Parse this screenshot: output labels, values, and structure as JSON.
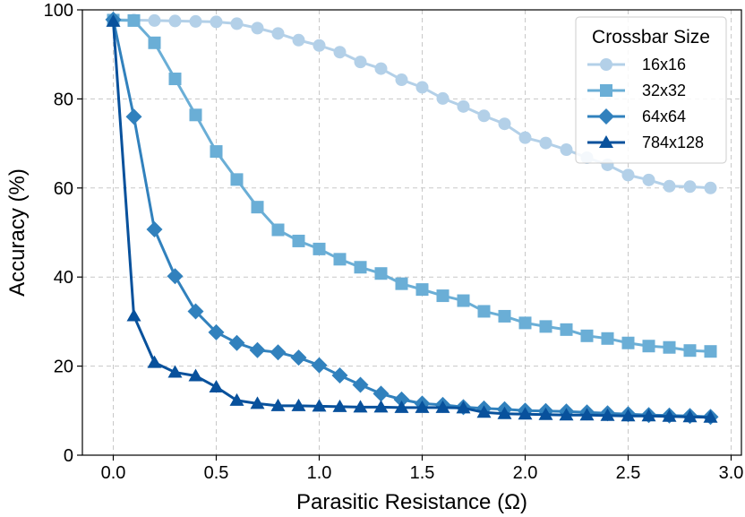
{
  "chart_data": {
    "type": "line",
    "title": "",
    "xlabel": "Parasitic Resistance (Ω)",
    "ylabel": "Accuracy (%)",
    "xlim": [
      -0.15,
      3.05
    ],
    "ylim": [
      0,
      100
    ],
    "xticks": [
      0.0,
      0.5,
      1.0,
      1.5,
      2.0,
      2.5,
      3.0
    ],
    "xtick_labels": [
      "0.0",
      "0.5",
      "1.0",
      "1.5",
      "2.0",
      "2.5",
      "3.0"
    ],
    "yticks": [
      0,
      20,
      40,
      60,
      80,
      100
    ],
    "ytick_labels": [
      "0",
      "20",
      "40",
      "60",
      "80",
      "100"
    ],
    "grid": true,
    "legend": {
      "title": "Crossbar Size",
      "placement": "top-right"
    },
    "x": [
      0.0,
      0.1,
      0.2,
      0.3,
      0.4,
      0.5,
      0.6,
      0.7,
      0.8,
      0.9,
      1.0,
      1.1,
      1.2,
      1.3,
      1.4,
      1.5,
      1.6,
      1.7,
      1.8,
      1.9,
      2.0,
      2.1,
      2.2,
      2.3,
      2.4,
      2.5,
      2.6,
      2.7,
      2.8,
      2.9
    ],
    "series": [
      {
        "name": "16x16",
        "color": "#b3d0e8",
        "marker": "circle",
        "values": [
          97.8,
          97.7,
          97.6,
          97.5,
          97.4,
          97.3,
          96.9,
          95.9,
          94.7,
          93.2,
          92.0,
          90.5,
          88.3,
          86.8,
          84.3,
          82.6,
          80.1,
          78.3,
          76.2,
          74.4,
          71.3,
          70.1,
          68.6,
          66.8,
          65.2,
          62.9,
          61.8,
          60.4,
          60.3,
          60.0
        ]
      },
      {
        "name": "32x32",
        "color": "#6aaed6",
        "marker": "square",
        "values": [
          97.7,
          97.6,
          92.6,
          84.5,
          76.4,
          68.2,
          61.9,
          55.7,
          50.6,
          48.1,
          46.3,
          44.0,
          42.2,
          40.8,
          38.5,
          37.2,
          35.8,
          34.7,
          32.3,
          31.2,
          29.7,
          28.9,
          28.2,
          26.8,
          26.2,
          25.2,
          24.5,
          24.2,
          23.5,
          23.3
        ]
      },
      {
        "name": "64x64",
        "color": "#3181bd",
        "marker": "diamond",
        "values": [
          97.8,
          76.0,
          50.7,
          40.2,
          32.3,
          27.6,
          25.2,
          23.6,
          23.1,
          21.9,
          20.2,
          17.9,
          15.8,
          13.8,
          12.5,
          11.6,
          11.3,
          10.8,
          10.5,
          10.3,
          10.0,
          9.9,
          9.8,
          9.6,
          9.4,
          9.2,
          9.0,
          8.9,
          8.8,
          8.6
        ]
      },
      {
        "name": "784x128",
        "color": "#08519c",
        "marker": "triangle",
        "values": [
          97.4,
          31.3,
          20.8,
          18.6,
          17.8,
          15.3,
          12.3,
          11.6,
          11.1,
          11.1,
          11.0,
          10.9,
          10.8,
          10.8,
          10.7,
          10.7,
          10.7,
          10.6,
          9.6,
          9.3,
          9.2,
          9.1,
          9.0,
          9.0,
          8.9,
          8.8,
          8.8,
          8.7,
          8.6,
          8.5
        ]
      }
    ]
  }
}
